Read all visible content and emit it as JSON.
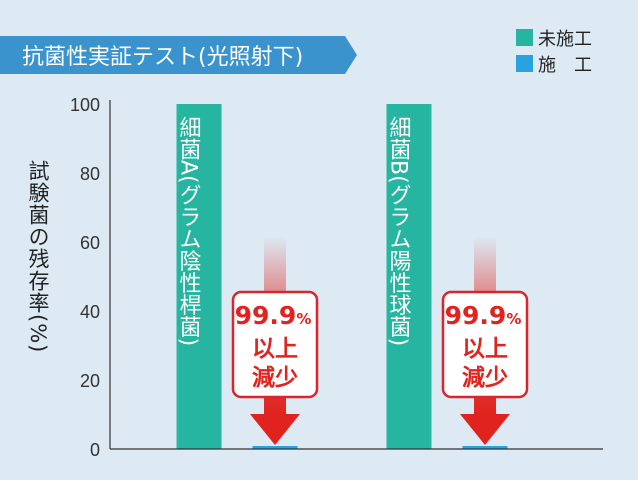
{
  "header": {
    "title": "抗菌性実証テスト(光照射下)"
  },
  "legend": [
    {
      "label": "未施工",
      "color": "#26b5a0"
    },
    {
      "label": "施　工",
      "color": "#27a3e0"
    }
  ],
  "y_axis_label": "試験菌の残存率(%)",
  "colors": {
    "banner": "#3a93cc",
    "arrow": "#e0231e",
    "reduction_border": "#d8262c",
    "reduction_text": "#e0231e"
  },
  "chart_data": {
    "type": "bar",
    "title": "抗菌性実証テスト(光照射下)",
    "ylabel": "試験菌の残存率(%)",
    "ylim": [
      0,
      100
    ],
    "yticks": [
      "0",
      "20",
      "40",
      "60",
      "80",
      "100"
    ],
    "categories": [
      "細菌A(グラム陰性桿菌)",
      "細菌B(グラム陽性球菌)"
    ],
    "series": [
      {
        "name": "未施工",
        "values": [
          100,
          100
        ]
      },
      {
        "name": "施　工",
        "values": [
          0.1,
          0.1
        ]
      }
    ],
    "grid": false,
    "legend_position": "top-right",
    "annotations": [
      {
        "category": "細菌A(グラム陰性桿菌)",
        "percent": "99.9",
        "unit": "%",
        "line2": "以上",
        "line3": "減少"
      },
      {
        "category": "細菌B(グラム陽性球菌)",
        "percent": "99.9",
        "unit": "%",
        "line2": "以上",
        "line3": "減少"
      }
    ]
  }
}
